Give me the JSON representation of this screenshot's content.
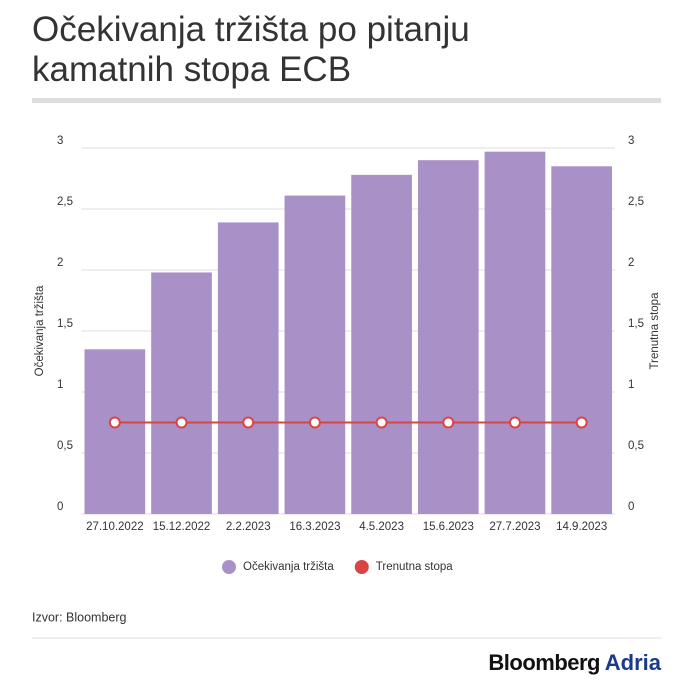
{
  "chart_data": {
    "type": "bar",
    "title": "Očekivanja tržišta po pitanju kamatnih stopa ECB",
    "categories": [
      "27.10.2022",
      "15.12.2022",
      "2.2.2023",
      "16.3.2023",
      "4.5.2023",
      "15.6.2023",
      "27.7.2023",
      "14.9.2023"
    ],
    "series": [
      {
        "name": "Očekivanja tržišta",
        "color": "#a991c8",
        "values": [
          1.35,
          1.98,
          2.39,
          2.61,
          2.78,
          2.9,
          2.97,
          2.85
        ]
      },
      {
        "name": "Trenutna stopa",
        "color": "#d94444",
        "type": "line",
        "axis": "y2",
        "values": [
          0.75,
          0.75,
          0.75,
          0.75,
          0.75,
          0.75,
          0.75,
          0.75
        ]
      }
    ],
    "y_label": "Očekivanja tržišta",
    "y2_label": "Trenutna stopa",
    "ylim": [
      0,
      3
    ],
    "yticks": [
      0,
      {
        "value": 0.5,
        "label": "0,5"
      },
      1,
      {
        "value": 1.5,
        "label": "1,5"
      },
      2,
      {
        "value": 2.5,
        "label": "2,5"
      },
      3
    ],
    "y2lim": [
      0,
      3
    ],
    "y2ticks": [
      0,
      {
        "value": 0.5,
        "label": "0,5"
      },
      1,
      {
        "value": 1.5,
        "label": "1,5"
      },
      2,
      {
        "value": 2.5,
        "label": "2,5"
      },
      3
    ],
    "grid": true,
    "legend": "bottom"
  },
  "footer": {
    "source": "Izvor: Bloomberg",
    "logo": [
      "Bloomberg",
      "Adria"
    ]
  }
}
